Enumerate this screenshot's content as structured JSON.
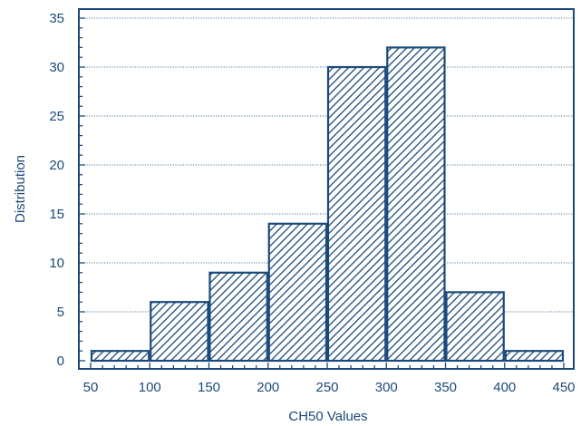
{
  "chart_data": {
    "type": "bar",
    "title": "",
    "xlabel": "CH50 Values",
    "ylabel": "Distribution",
    "bins": [
      {
        "start": 50,
        "end": 100,
        "value": 1
      },
      {
        "start": 100,
        "end": 150,
        "value": 6
      },
      {
        "start": 150,
        "end": 200,
        "value": 9
      },
      {
        "start": 200,
        "end": 250,
        "value": 14
      },
      {
        "start": 250,
        "end": 300,
        "value": 30
      },
      {
        "start": 300,
        "end": 350,
        "value": 32
      },
      {
        "start": 350,
        "end": 400,
        "value": 7
      },
      {
        "start": 400,
        "end": 450,
        "value": 1
      }
    ],
    "xlim": [
      50,
      450
    ],
    "ylim": [
      0,
      35
    ],
    "xticks": [
      50,
      100,
      150,
      200,
      250,
      300,
      350,
      400,
      450
    ],
    "yticks": [
      0,
      5,
      10,
      15,
      20,
      25,
      30,
      35
    ],
    "grid": true,
    "grid_axis": "y",
    "grid_style": "dotted",
    "bar_fill": "diagonal-hatch",
    "colors": {
      "primary": "#1b4a7a",
      "background": "#ffffff"
    }
  }
}
